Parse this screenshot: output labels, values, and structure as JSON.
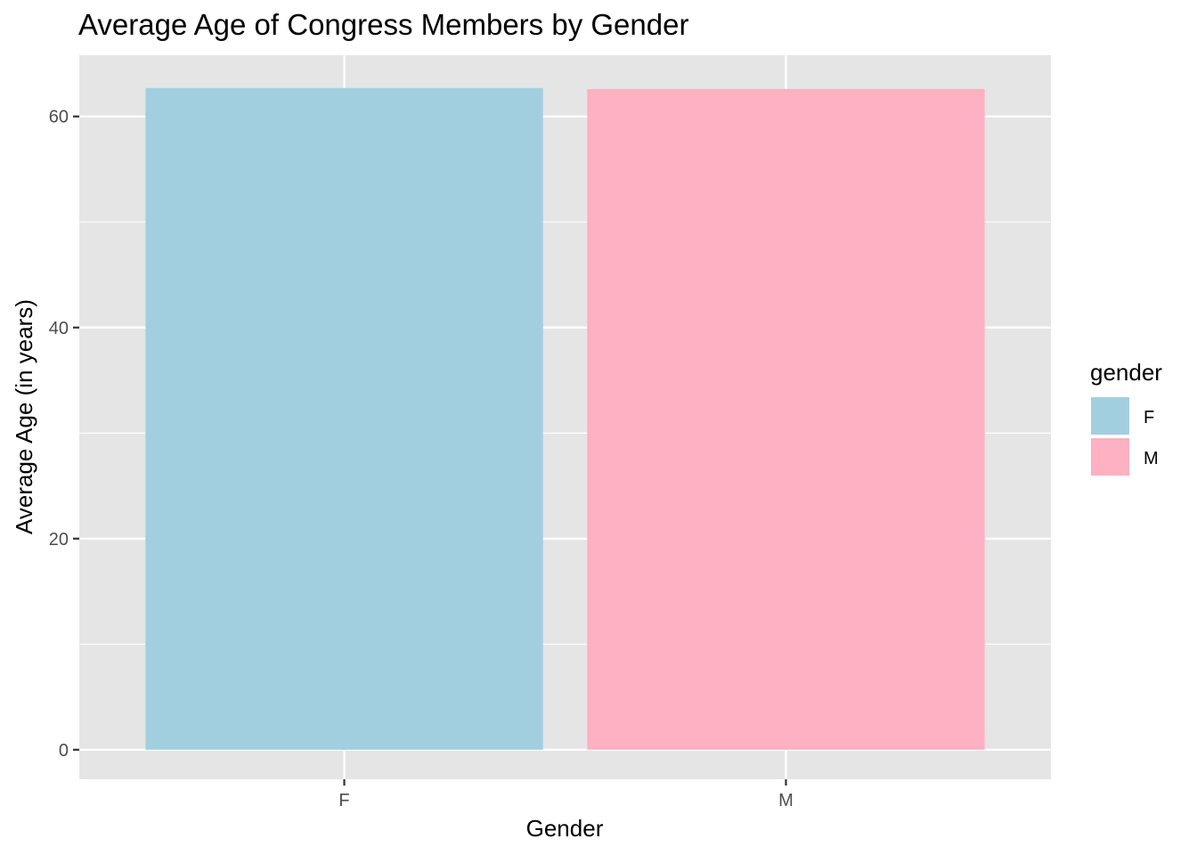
{
  "chart_data": {
    "type": "bar",
    "title": "Average Age of Congress Members by Gender",
    "xlabel": "Gender",
    "ylabel": "Average Age (in years)",
    "categories": [
      "F",
      "M"
    ],
    "values": [
      62.7,
      62.6
    ],
    "colors": [
      "#a2cfe0",
      "#fdb1c2"
    ],
    "ylim": [
      -2.8,
      65.8
    ],
    "yticks": [
      0,
      20,
      40,
      60
    ],
    "grid": true,
    "panel_background": "#e5e5e5",
    "gridline_color": "#ffffff",
    "legend": {
      "title": "gender",
      "position": "right",
      "entries": [
        "F",
        "M"
      ]
    }
  }
}
